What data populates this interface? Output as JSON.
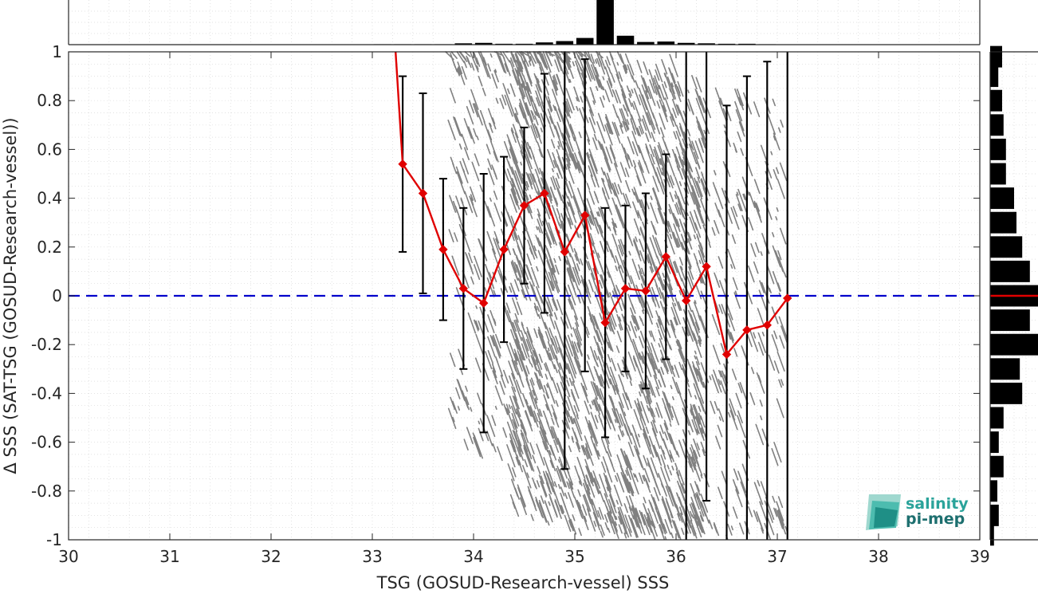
{
  "chart_data": {
    "type": "scatter",
    "xlabel": "TSG (GOSUD-Research-vessel) SSS",
    "ylabel": "Δ SSS (SAT-TSG (GOSUD-Research-vessel))",
    "xlim": [
      30,
      39
    ],
    "ylim": [
      -1,
      1
    ],
    "x_ticks": [
      "30",
      "31",
      "32",
      "33",
      "34",
      "35",
      "36",
      "37",
      "38",
      "39"
    ],
    "y_ticks": [
      "1",
      "0.8",
      "0.6",
      "0.4",
      "0.2",
      "0",
      "-0.2",
      "-0.4",
      "-0.6",
      "-0.8",
      "-1"
    ],
    "grid": true,
    "reference_line": {
      "y": 0,
      "style": "dashed",
      "color": "#0000cc"
    },
    "scatter_color": "#808080",
    "mean_color": "#e00000",
    "binned_mean": {
      "x": [
        33.3,
        33.5,
        33.7,
        33.9,
        34.1,
        34.3,
        34.5,
        34.7,
        34.9,
        35.1,
        35.3,
        35.5,
        35.7,
        35.9,
        36.1,
        36.3,
        36.5,
        36.7,
        36.9,
        37.1
      ],
      "y": [
        0.54,
        0.42,
        0.19,
        0.03,
        -0.03,
        0.19,
        0.37,
        0.42,
        0.18,
        0.33,
        -0.11,
        0.03,
        0.02,
        0.16,
        -0.02,
        0.12,
        -0.24,
        -0.14,
        -0.12,
        -0.01
      ],
      "std": [
        0.36,
        0.41,
        0.29,
        0.33,
        0.53,
        0.38,
        0.32,
        0.49,
        0.89,
        0.64,
        0.47,
        0.34,
        0.4,
        0.42,
        1.2,
        0.96,
        1.02,
        1.04,
        1.08,
        1.2
      ]
    },
    "entry_line": {
      "x": [
        33.23,
        33.3
      ],
      "y": [
        1.0,
        0.54
      ]
    },
    "top_histogram": {
      "bin_centers": [
        33.1,
        33.3,
        33.5,
        33.7,
        33.9,
        34.1,
        34.3,
        34.5,
        34.7,
        34.9,
        35.1,
        35.3,
        35.5,
        35.7,
        35.9,
        36.1,
        36.3,
        36.5,
        36.7,
        36.9,
        37.1
      ],
      "rel_heights": [
        0.01,
        0.01,
        0.01,
        0.01,
        0.03,
        0.04,
        0.02,
        0.02,
        0.05,
        0.08,
        0.15,
        1.0,
        0.2,
        0.06,
        0.07,
        0.04,
        0.03,
        0.02,
        0.02,
        0.01,
        0.005
      ]
    },
    "right_histogram": {
      "bin_centers": [
        0.98,
        0.9,
        0.8,
        0.7,
        0.6,
        0.5,
        0.4,
        0.3,
        0.2,
        0.1,
        0.0,
        -0.1,
        -0.2,
        -0.3,
        -0.4,
        -0.5,
        -0.6,
        -0.7,
        -0.8,
        -0.9,
        -0.98
      ],
      "rel_heights": [
        0.25,
        0.17,
        0.25,
        0.28,
        0.33,
        0.33,
        0.5,
        0.55,
        0.67,
        0.83,
        1.0,
        0.83,
        1.0,
        0.62,
        0.67,
        0.28,
        0.18,
        0.28,
        0.15,
        0.18,
        0.08
      ],
      "mean_marker": 0.0
    }
  },
  "logo": {
    "line1": "salinity",
    "line2": "pi-mep"
  }
}
